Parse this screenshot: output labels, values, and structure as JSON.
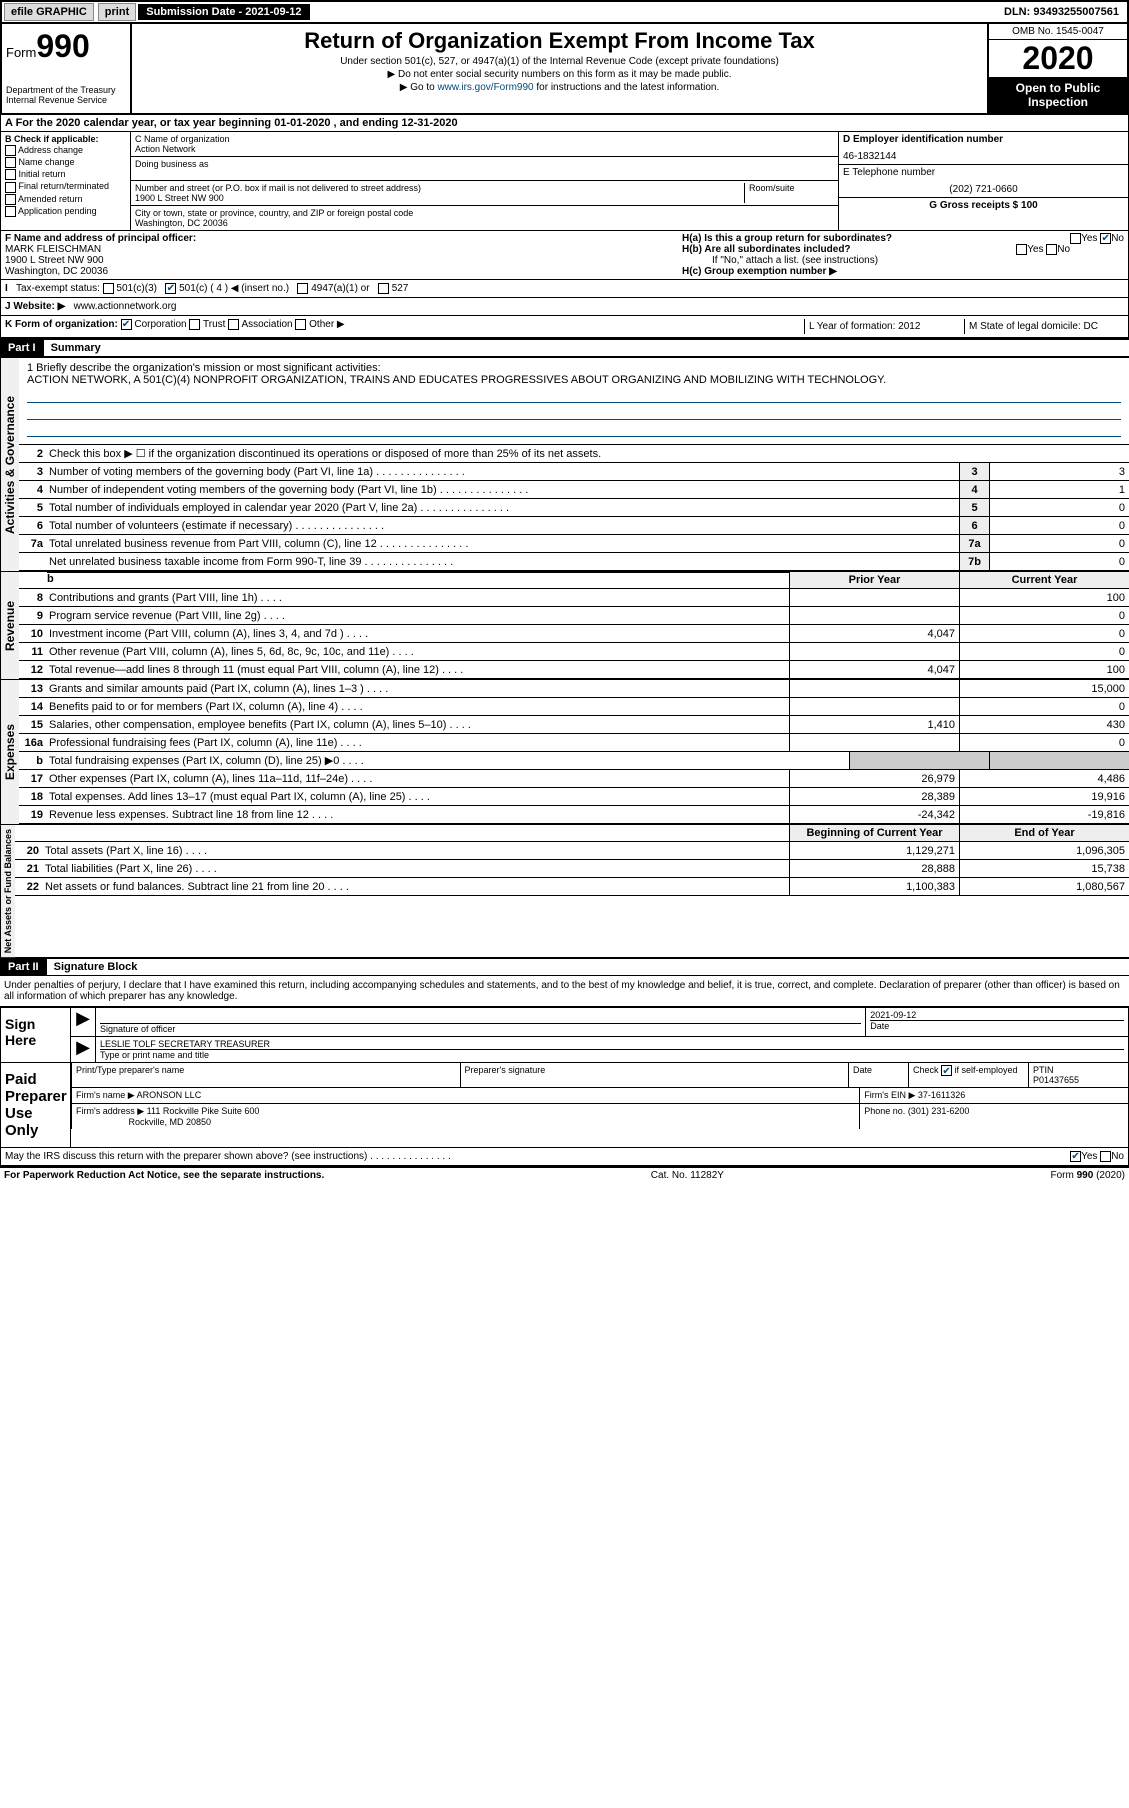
{
  "topbar": {
    "efile": "efile GRAPHIC",
    "print": "print",
    "submission_label": "Submission Date - 2021-09-12",
    "dln": "DLN: 93493255007561"
  },
  "header": {
    "form_word": "Form",
    "form_number": "990",
    "dept": "Department of the Treasury\nInternal Revenue Service",
    "title": "Return of Organization Exempt From Income Tax",
    "subtitle1": "Under section 501(c), 527, or 4947(a)(1) of the Internal Revenue Code (except private foundations)",
    "subtitle2": "▶ Do not enter social security numbers on this form as it may be made public.",
    "subtitle3_pre": "▶ Go to ",
    "subtitle3_link": "www.irs.gov/Form990",
    "subtitle3_post": " for instructions and the latest information.",
    "omb": "OMB No. 1545-0047",
    "year": "2020",
    "public": "Open to Public Inspection"
  },
  "period": "A For the 2020 calendar year, or tax year beginning 01-01-2020    , and ending 12-31-2020",
  "colB": {
    "label": "B Check if applicable:",
    "items": [
      "Address change",
      "Name change",
      "Initial return",
      "Final return/terminated",
      "Amended return",
      "Application pending"
    ]
  },
  "colC": {
    "name_label": "C Name of organization",
    "name": "Action Network",
    "dba_label": "Doing business as",
    "addr_label": "Number and street (or P.O. box if mail is not delivered to street address)",
    "room_label": "Room/suite",
    "addr": "1900 L Street NW 900",
    "city_label": "City or town, state or province, country, and ZIP or foreign postal code",
    "city": "Washington, DC  20036"
  },
  "colD": {
    "ein_label": "D Employer identification number",
    "ein": "46-1832144",
    "phone_label": "E Telephone number",
    "phone": "(202) 721-0660",
    "gross_label": "G Gross receipts $ 100"
  },
  "officer": {
    "label": "F  Name and address of principal officer:",
    "name": "MARK FLEISCHMAN",
    "addr1": "1900 L Street NW 900",
    "addr2": "Washington, DC  20036",
    "ha": "H(a)  Is this a group return for subordinates?",
    "hb": "H(b)  Are all subordinates included?",
    "hb_note": "If \"No,\" attach a list. (see instructions)",
    "hc": "H(c)  Group exemption number ▶",
    "yes": "Yes",
    "no": "No"
  },
  "tax_status": {
    "label": "Tax-exempt status:",
    "opt1": "501(c)(3)",
    "opt2": "501(c) ( 4 ) ◀ (insert no.)",
    "opt3": "4947(a)(1) or",
    "opt4": "527"
  },
  "website": {
    "label": "J  Website: ▶",
    "value": "www.actionnetwork.org"
  },
  "korg": {
    "label": "K Form of organization:",
    "opts": [
      "Corporation",
      "Trust",
      "Association",
      "Other ▶"
    ],
    "year_label": "L Year of formation: 2012",
    "state_label": "M State of legal domicile: DC"
  },
  "part1": {
    "tab": "Part I",
    "title": "Summary",
    "line1_label": "1  Briefly describe the organization's mission or most significant activities:",
    "mission": "ACTION NETWORK, A 501(C)(4) NONPROFIT ORGANIZATION, TRAINS AND EDUCATES PROGRESSIVES ABOUT ORGANIZING AND MOBILIZING WITH TECHNOLOGY.",
    "line2": "Check this box ▶ ☐  if the organization discontinued its operations or disposed of more than 25% of its net assets.",
    "sections": {
      "governance": "Activities & Governance",
      "revenue": "Revenue",
      "expenses": "Expenses",
      "netassets": "Net Assets or Fund Balances"
    },
    "col_prior": "Prior Year",
    "col_current": "Current Year",
    "col_begin": "Beginning of Current Year",
    "col_end": "End of Year",
    "rows_gov": [
      {
        "n": "3",
        "d": "Number of voting members of the governing body (Part VI, line 1a)",
        "box": "3",
        "v": "3"
      },
      {
        "n": "4",
        "d": "Number of independent voting members of the governing body (Part VI, line 1b)",
        "box": "4",
        "v": "1"
      },
      {
        "n": "5",
        "d": "Total number of individuals employed in calendar year 2020 (Part V, line 2a)",
        "box": "5",
        "v": "0"
      },
      {
        "n": "6",
        "d": "Total number of volunteers (estimate if necessary)",
        "box": "6",
        "v": "0"
      },
      {
        "n": "7a",
        "d": "Total unrelated business revenue from Part VIII, column (C), line 12",
        "box": "7a",
        "v": "0"
      },
      {
        "n": "",
        "d": "Net unrelated business taxable income from Form 990-T, line 39",
        "box": "7b",
        "v": "0"
      }
    ],
    "rows_rev": [
      {
        "n": "8",
        "d": "Contributions and grants (Part VIII, line 1h)",
        "p": "",
        "c": "100"
      },
      {
        "n": "9",
        "d": "Program service revenue (Part VIII, line 2g)",
        "p": "",
        "c": "0"
      },
      {
        "n": "10",
        "d": "Investment income (Part VIII, column (A), lines 3, 4, and 7d )",
        "p": "4,047",
        "c": "0"
      },
      {
        "n": "11",
        "d": "Other revenue (Part VIII, column (A), lines 5, 6d, 8c, 9c, 10c, and 11e)",
        "p": "",
        "c": "0"
      },
      {
        "n": "12",
        "d": "Total revenue—add lines 8 through 11 (must equal Part VIII, column (A), line 12)",
        "p": "4,047",
        "c": "100"
      }
    ],
    "rows_exp": [
      {
        "n": "13",
        "d": "Grants and similar amounts paid (Part IX, column (A), lines 1–3 )",
        "p": "",
        "c": "15,000"
      },
      {
        "n": "14",
        "d": "Benefits paid to or for members (Part IX, column (A), line 4)",
        "p": "",
        "c": "0"
      },
      {
        "n": "15",
        "d": "Salaries, other compensation, employee benefits (Part IX, column (A), lines 5–10)",
        "p": "1,410",
        "c": "430"
      },
      {
        "n": "16a",
        "d": "Professional fundraising fees (Part IX, column (A), line 11e)",
        "p": "",
        "c": "0"
      },
      {
        "n": "b",
        "d": "Total fundraising expenses (Part IX, column (D), line 25) ▶0",
        "p": "shaded",
        "c": "shaded"
      },
      {
        "n": "17",
        "d": "Other expenses (Part IX, column (A), lines 11a–11d, 11f–24e)",
        "p": "26,979",
        "c": "4,486"
      },
      {
        "n": "18",
        "d": "Total expenses. Add lines 13–17 (must equal Part IX, column (A), line 25)",
        "p": "28,389",
        "c": "19,916"
      },
      {
        "n": "19",
        "d": "Revenue less expenses. Subtract line 18 from line 12",
        "p": "-24,342",
        "c": "-19,816"
      }
    ],
    "rows_net": [
      {
        "n": "20",
        "d": "Total assets (Part X, line 16)",
        "p": "1,129,271",
        "c": "1,096,305"
      },
      {
        "n": "21",
        "d": "Total liabilities (Part X, line 26)",
        "p": "28,888",
        "c": "15,738"
      },
      {
        "n": "22",
        "d": "Net assets or fund balances. Subtract line 21 from line 20",
        "p": "1,100,383",
        "c": "1,080,567"
      }
    ]
  },
  "part2": {
    "tab": "Part II",
    "title": "Signature Block",
    "declaration": "Under penalties of perjury, I declare that I have examined this return, including accompanying schedules and statements, and to the best of my knowledge and belief, it is true, correct, and complete. Declaration of preparer (other than officer) is based on all information of which preparer has any knowledge.",
    "sign_here": "Sign Here",
    "sig_officer": "Signature of officer",
    "sig_date": "Date",
    "sig_date_val": "2021-09-12",
    "sig_name": "LESLIE TOLF  SECRETARY TREASURER",
    "sig_name_label": "Type or print name and title",
    "paid": "Paid Preparer Use Only",
    "prep_name_label": "Print/Type preparer's name",
    "prep_sig_label": "Preparer's signature",
    "prep_date_label": "Date",
    "prep_check": "Check ☑ if self-employed",
    "ptin_label": "PTIN",
    "ptin": "P01437655",
    "firm_label": "Firm's name    ▶",
    "firm": "ARONSON LLC",
    "firm_ein_label": "Firm's EIN ▶",
    "firm_ein": "37-1611326",
    "firm_addr_label": "Firm's address ▶",
    "firm_addr": "111 Rockville Pike Suite 600",
    "firm_city": "Rockville, MD  20850",
    "firm_phone_label": "Phone no.",
    "firm_phone": "(301) 231-6200",
    "discuss": "May the IRS discuss this return with the preparer shown above? (see instructions)"
  },
  "footer": {
    "left": "For Paperwork Reduction Act Notice, see the separate instructions.",
    "center": "Cat. No. 11282Y",
    "right": "Form 990 (2020)"
  }
}
